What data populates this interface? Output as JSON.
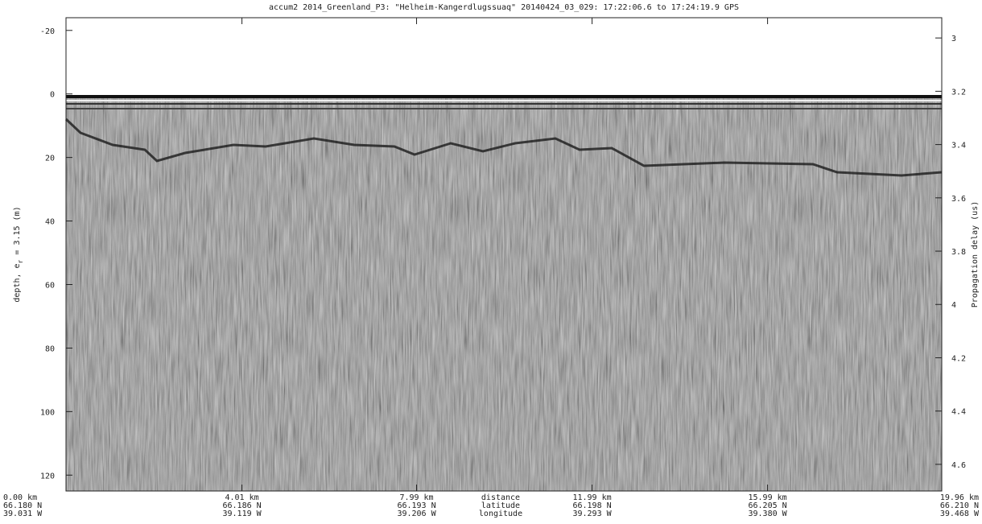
{
  "chart_data": {
    "type": "echogram",
    "title": "accum2 2014_Greenland_P3: \"Helheim-Kangerdlugssuaq\"  20140424_03_029: 17:22:06.6 to 17:24:19.9 GPS",
    "y_label": [
      "depth, e",
      "r",
      " = 3.15 (m)"
    ],
    "y2_label": "Propagation delay (us)",
    "xlim": [
      0,
      19.96
    ],
    "xticks": [
      {
        "value": 0,
        "label": "0.00 km",
        "latitude": "66.180 N",
        "longitude": "39.031 W"
      },
      {
        "value": 4.01,
        "label": "4.01 km",
        "latitude": "66.186 N",
        "longitude": "39.119 W"
      },
      {
        "value": 7.99,
        "label": "7.99 km",
        "latitude": "66.193 N",
        "longitude": "39.206 W"
      },
      {
        "value": 11.99,
        "label": "11.99 km",
        "latitude": "66.198 N",
        "longitude": "39.293 W"
      },
      {
        "value": 15.99,
        "label": "15.99 km",
        "latitude": "66.205 N",
        "longitude": "39.380 W"
      },
      {
        "value": 19.96,
        "label": "19.96 km",
        "latitude": "66.210 N",
        "longitude": "39.468 W"
      }
    ],
    "x_row_titles": [
      "distance",
      "latitude",
      "longitude"
    ],
    "ylim": [
      -24,
      125
    ],
    "yticks": [
      -20,
      0,
      20,
      40,
      60,
      80,
      100,
      120
    ],
    "y2lim": [
      2.924,
      4.7
    ],
    "y2ticks": [
      3,
      3.2,
      3.4,
      3.6,
      3.8,
      4,
      4.2,
      4.4,
      4.6
    ]
  }
}
